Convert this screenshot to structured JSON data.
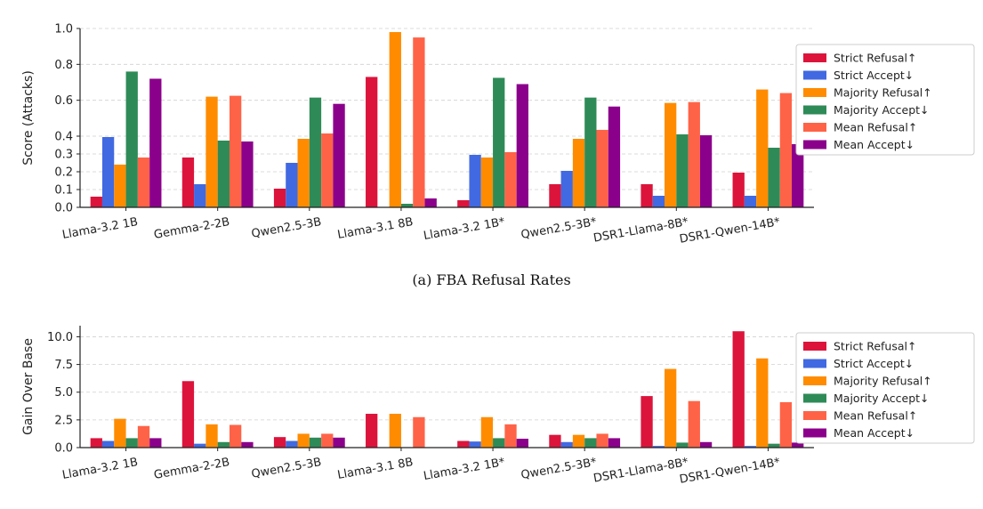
{
  "chart_data": [
    {
      "type": "bar",
      "ylabel": "Score (Attacks)",
      "xlabel": "",
      "ylim": [
        0,
        1.0
      ],
      "yticks": [
        "0.0",
        "0.1",
        "0.2",
        "0.3",
        "0.4",
        "0.6",
        "0.8",
        "1.0"
      ],
      "ytick_values": [
        0,
        0.1,
        0.2,
        0.3,
        0.4,
        0.6,
        0.8,
        1.0
      ],
      "y_scale": "piecewise (0–0.4 expanded, 0.4–1.0 compressed)",
      "grid": "horizontal dashed",
      "legend_position": "right",
      "caption": "(a) FBA Refusal Rates",
      "categories": [
        "Llama-3.2 1B",
        "Gemma-2-2B",
        "Qwen2.5-3B",
        "Llama-3.1 8B",
        "Llama-3.2 1B*",
        "Qwen2.5-3B*",
        "DSR1-Llama-8B*",
        "DSR1-Qwen-14B*"
      ],
      "series": [
        {
          "name": "Strict Refusal↑",
          "color": "#dc143c",
          "values": [
            0.06,
            0.28,
            0.105,
            0.73,
            0.04,
            0.13,
            0.13,
            0.195
          ]
        },
        {
          "name": "Strict Accept↓",
          "color": "#4169e1",
          "values": [
            0.395,
            0.13,
            0.25,
            0.0,
            0.295,
            0.205,
            0.065,
            0.065
          ]
        },
        {
          "name": "Majority Refusal↑",
          "color": "#ff8c00",
          "values": [
            0.24,
            0.62,
            0.385,
            0.98,
            0.28,
            0.385,
            0.585,
            0.66
          ]
        },
        {
          "name": "Majority Accept↓",
          "color": "#2e8b57",
          "values": [
            0.76,
            0.375,
            0.615,
            0.02,
            0.725,
            0.615,
            0.41,
            0.335
          ]
        },
        {
          "name": "Mean Refusal↑",
          "color": "#ff6347",
          "values": [
            0.28,
            0.625,
            0.415,
            0.95,
            0.31,
            0.435,
            0.59,
            0.64
          ]
        },
        {
          "name": "Mean Accept↓",
          "color": "#8b008b",
          "values": [
            0.72,
            0.37,
            0.58,
            0.05,
            0.69,
            0.565,
            0.405,
            0.355
          ]
        }
      ]
    },
    {
      "type": "bar",
      "ylabel": "Gain Over Base",
      "xlabel": "",
      "ylim": [
        0,
        11
      ],
      "yticks": [
        "0.0",
        "2.5",
        "5.0",
        "7.5",
        "10.0"
      ],
      "ytick_values": [
        0,
        2.5,
        5,
        7.5,
        10
      ],
      "grid": "horizontal dashed",
      "legend_position": "right",
      "categories": [
        "Llama-3.2 1B",
        "Gemma-2-2B",
        "Qwen2.5-3B",
        "Llama-3.1 8B",
        "Llama-3.2 1B*",
        "Qwen2.5-3B*",
        "DSR1-Llama-8B*",
        "DSR1-Qwen-14B*"
      ],
      "series": [
        {
          "name": "Strict Refusal↑",
          "color": "#dc143c",
          "values": [
            0.85,
            6.0,
            0.95,
            3.05,
            0.6,
            1.15,
            4.65,
            10.5
          ]
        },
        {
          "name": "Strict Accept↓",
          "color": "#4169e1",
          "values": [
            0.6,
            0.35,
            0.6,
            0.0,
            0.55,
            0.5,
            0.15,
            0.15
          ]
        },
        {
          "name": "Majority Refusal↑",
          "color": "#ff8c00",
          "values": [
            2.6,
            2.1,
            1.25,
            3.05,
            2.75,
            1.15,
            7.1,
            8.05
          ]
        },
        {
          "name": "Majority Accept↓",
          "color": "#2e8b57",
          "values": [
            0.85,
            0.5,
            0.9,
            0.0,
            0.85,
            0.85,
            0.45,
            0.35
          ]
        },
        {
          "name": "Mean Refusal↑",
          "color": "#ff6347",
          "values": [
            1.95,
            2.05,
            1.25,
            2.75,
            2.1,
            1.25,
            4.2,
            4.1
          ]
        },
        {
          "name": "Mean Accept↓",
          "color": "#8b008b",
          "values": [
            0.85,
            0.5,
            0.9,
            0.0,
            0.8,
            0.85,
            0.5,
            0.45
          ]
        }
      ]
    }
  ]
}
